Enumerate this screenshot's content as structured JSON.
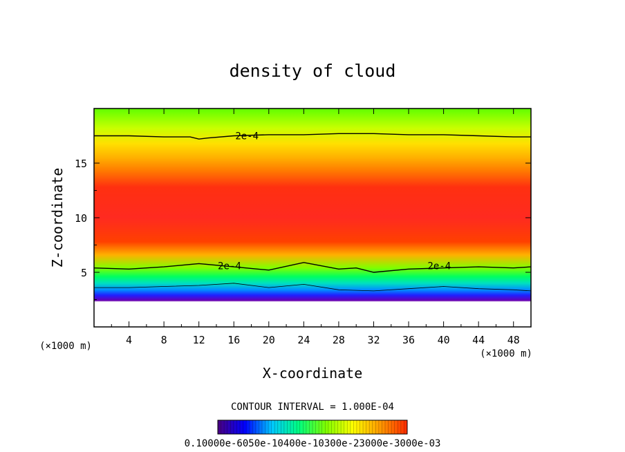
{
  "chart_data": {
    "type": "heatmap",
    "title": "density of cloud",
    "xlabel": "X-coordinate",
    "ylabel": "Z-coordinate",
    "x_unit_left": "(×1000 m)",
    "x_unit_right": "(×1000 m)",
    "xlim": [
      0,
      50
    ],
    "ylim": [
      0,
      20
    ],
    "x_ticks": [
      4,
      8,
      12,
      16,
      20,
      24,
      28,
      32,
      36,
      40,
      44,
      48
    ],
    "y_ticks": [
      5,
      10,
      15
    ],
    "x_tick_labels": [
      "4",
      "8",
      "12",
      "16",
      "20",
      "24",
      "28",
      "32",
      "36",
      "40",
      "44",
      "48"
    ],
    "y_tick_labels": [
      "5",
      "10",
      "15"
    ],
    "contour_interval_text": "CONTOUR INTERVAL = 1.000E-04",
    "contour_labels": [
      {
        "text": "2e-4",
        "x": 17.5,
        "y": 17.5
      },
      {
        "text": "2e-4",
        "x": 15.5,
        "y": 5.6
      },
      {
        "text": "2e-4",
        "x": 39.5,
        "y": 5.6
      }
    ],
    "colorbar_labels_text": "0.10000e-6050e-10400e-10300e-23000e-3000e-03",
    "colorbar_colors": [
      "#4a0080",
      "#0000ff",
      "#00c8ff",
      "#00ff80",
      "#80ff00",
      "#ffff00",
      "#ff9a00",
      "#ff2a00"
    ],
    "profile": [
      {
        "z": 0.0,
        "color": "#ffffff"
      },
      {
        "z": 2.3,
        "color": "#ffffff"
      },
      {
        "z": 2.4,
        "color": "#6a00b0"
      },
      {
        "z": 2.9,
        "color": "#2020ff"
      },
      {
        "z": 3.4,
        "color": "#0090ff"
      },
      {
        "z": 4.0,
        "color": "#00e0c0"
      },
      {
        "z": 4.6,
        "color": "#00ff60"
      },
      {
        "z": 5.4,
        "color": "#80ff00"
      },
      {
        "z": 6.6,
        "color": "#ffb000"
      },
      {
        "z": 7.8,
        "color": "#ff4000"
      },
      {
        "z": 10.0,
        "color": "#ff2a20"
      },
      {
        "z": 12.8,
        "color": "#ff3010"
      },
      {
        "z": 14.3,
        "color": "#ff7a00"
      },
      {
        "z": 15.5,
        "color": "#ffb000"
      },
      {
        "z": 16.8,
        "color": "#ffe000"
      },
      {
        "z": 18.2,
        "color": "#c8ff00"
      },
      {
        "z": 20.0,
        "color": "#60ff00"
      }
    ],
    "contour_lines": [
      {
        "x": [
          0,
          4,
          8,
          11,
          12,
          13,
          16,
          20,
          24,
          28,
          32,
          36,
          40,
          44,
          48,
          50
        ],
        "y": [
          17.5,
          17.5,
          17.4,
          17.4,
          17.2,
          17.3,
          17.5,
          17.6,
          17.6,
          17.7,
          17.7,
          17.6,
          17.6,
          17.5,
          17.4,
          17.4
        ]
      },
      {
        "x": [
          0,
          4,
          8,
          12,
          16,
          20,
          24,
          28,
          30,
          32,
          36,
          40,
          44,
          48,
          50
        ],
        "y": [
          5.4,
          5.3,
          5.5,
          5.8,
          5.5,
          5.2,
          5.9,
          5.3,
          5.4,
          5.0,
          5.3,
          5.4,
          5.5,
          5.4,
          5.5
        ]
      },
      {
        "x": [
          0,
          4,
          8,
          12,
          16,
          20,
          24,
          28,
          32,
          36,
          40,
          44,
          48,
          50
        ],
        "y": [
          3.6,
          3.6,
          3.7,
          3.8,
          4.0,
          3.6,
          3.9,
          3.4,
          3.3,
          3.5,
          3.7,
          3.5,
          3.4,
          3.3
        ]
      }
    ]
  }
}
